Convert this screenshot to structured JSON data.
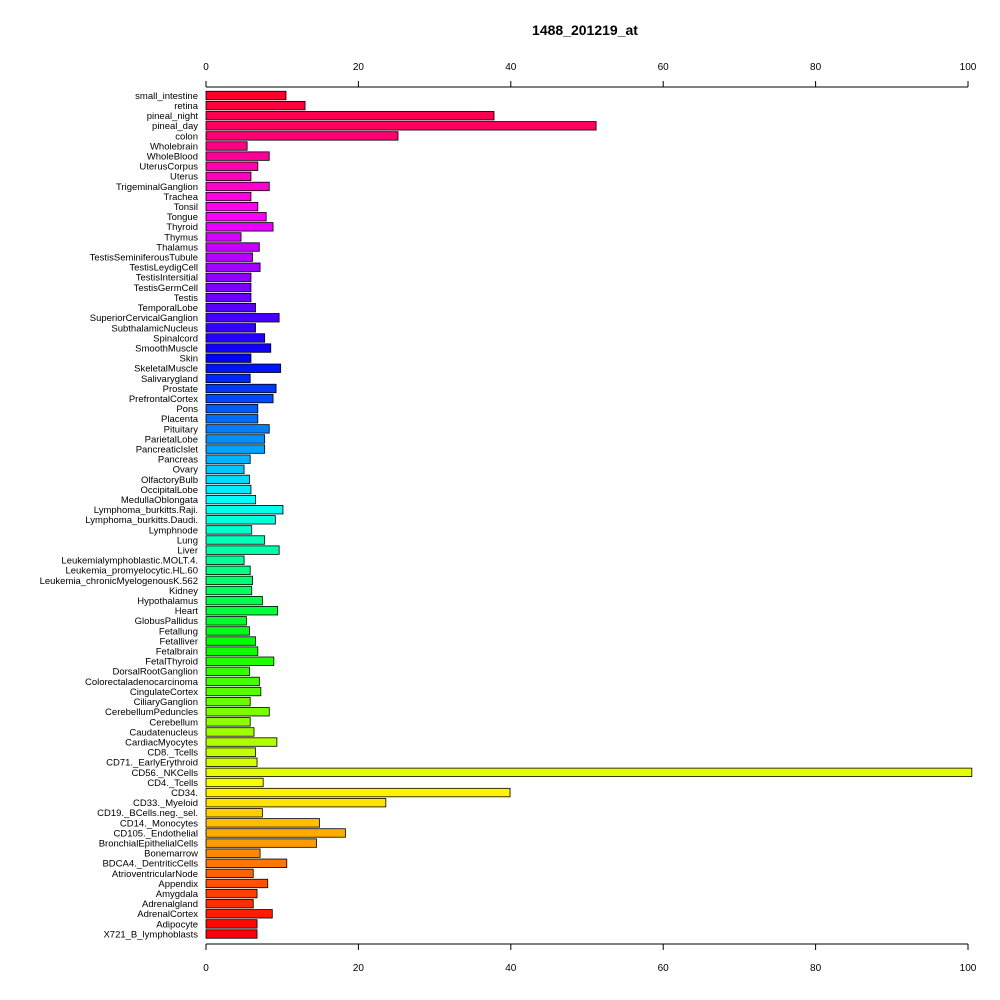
{
  "chart_data": {
    "type": "bar",
    "orientation": "horizontal",
    "title": "1488_201219_at",
    "xlabel": "",
    "ylabel": "",
    "xlim": [
      0,
      100
    ],
    "xticks": [
      0,
      20,
      40,
      60,
      80,
      100
    ],
    "grid": false,
    "legend": "none",
    "categories": [
      "small_intestine",
      "retina",
      "pineal_night",
      "pineal_day",
      "colon",
      "Wholebrain",
      "WholeBlood",
      "UterusCorpus",
      "Uterus",
      "TrigeminalGanglion",
      "Trachea",
      "Tonsil",
      "Tongue",
      "Thyroid",
      "Thymus",
      "Thalamus",
      "TestisSeminiferousTubule",
      "TestisLeydigCell",
      "TestisIntersitial",
      "TestisGermCell",
      "Testis",
      "TemporalLobe",
      "SuperiorCervicalGanglion",
      "SubthalamicNucleus",
      "Spinalcord",
      "SmoothMuscle",
      "Skin",
      "SkeletalMuscle",
      "Salivarygland",
      "Prostate",
      "PrefrontalCortex",
      "Pons",
      "Placenta",
      "Pituitary",
      "ParietalLobe",
      "PancreaticIslet",
      "Pancreas",
      "Ovary",
      "OlfactoryBulb",
      "OccipitalLobe",
      "MedullaOblongata",
      "Lymphoma_burkitts.Raji.",
      "Lymphoma_burkitts.Daudi.",
      "Lymphnode",
      "Lung",
      "Liver",
      "Leukemialymphoblastic.MOLT.4.",
      "Leukemia_promyelocytic.HL.60",
      "Leukemia_chronicMyelogenousK.562",
      "Kidney",
      "Hypothalamus",
      "Heart",
      "GlobusPallidus",
      "Fetallung",
      "Fetalliver",
      "Fetalbrain",
      "FetalThyroid",
      "DorsalRootGanglion",
      "Colorectaladenocarcinoma",
      "CingulateCortex",
      "CiliaryGanglion",
      "CerebellumPeduncles",
      "Cerebellum",
      "Caudatenucleus",
      "CardiacMyocytes",
      "CD8._Tcells",
      "CD71._EarlyErythroid",
      "CD56._NKCells",
      "CD4._Tcells",
      "CD34.",
      "CD33._Myeloid",
      "CD19._BCells.neg._sel.",
      "CD14._Monocytes",
      "CD105._Endothelial",
      "BronchialEpithelialCells",
      "Bonemarrow",
      "BDCA4._DentriticCells",
      "AtrioventricularNode",
      "Appendix",
      "Amygdala",
      "Adrenalgland",
      "AdrenalCortex",
      "Adipocyte",
      "X721_B_lymphoblasts"
    ],
    "values": [
      10.5,
      13.0,
      37.8,
      51.2,
      25.2,
      5.4,
      8.3,
      6.8,
      5.9,
      8.3,
      5.9,
      6.8,
      7.9,
      8.8,
      4.6,
      7.0,
      6.1,
      7.1,
      5.9,
      5.9,
      5.9,
      6.5,
      9.6,
      6.5,
      7.7,
      8.5,
      5.9,
      9.8,
      5.8,
      9.2,
      8.8,
      6.8,
      6.8,
      8.3,
      7.7,
      7.7,
      5.8,
      5.0,
      5.7,
      5.9,
      6.5,
      10.1,
      9.1,
      6.0,
      7.7,
      9.6,
      5.0,
      5.8,
      6.1,
      6.0,
      7.4,
      9.4,
      5.3,
      5.7,
      6.5,
      6.8,
      8.9,
      5.7,
      7.0,
      7.2,
      5.8,
      8.3,
      5.8,
      6.3,
      9.3,
      6.5,
      6.7,
      100.5,
      7.5,
      39.9,
      23.6,
      7.4,
      14.9,
      18.3,
      14.5,
      7.1,
      10.6,
      6.2,
      8.1,
      6.7,
      6.2,
      8.7,
      6.7,
      6.7
    ]
  }
}
